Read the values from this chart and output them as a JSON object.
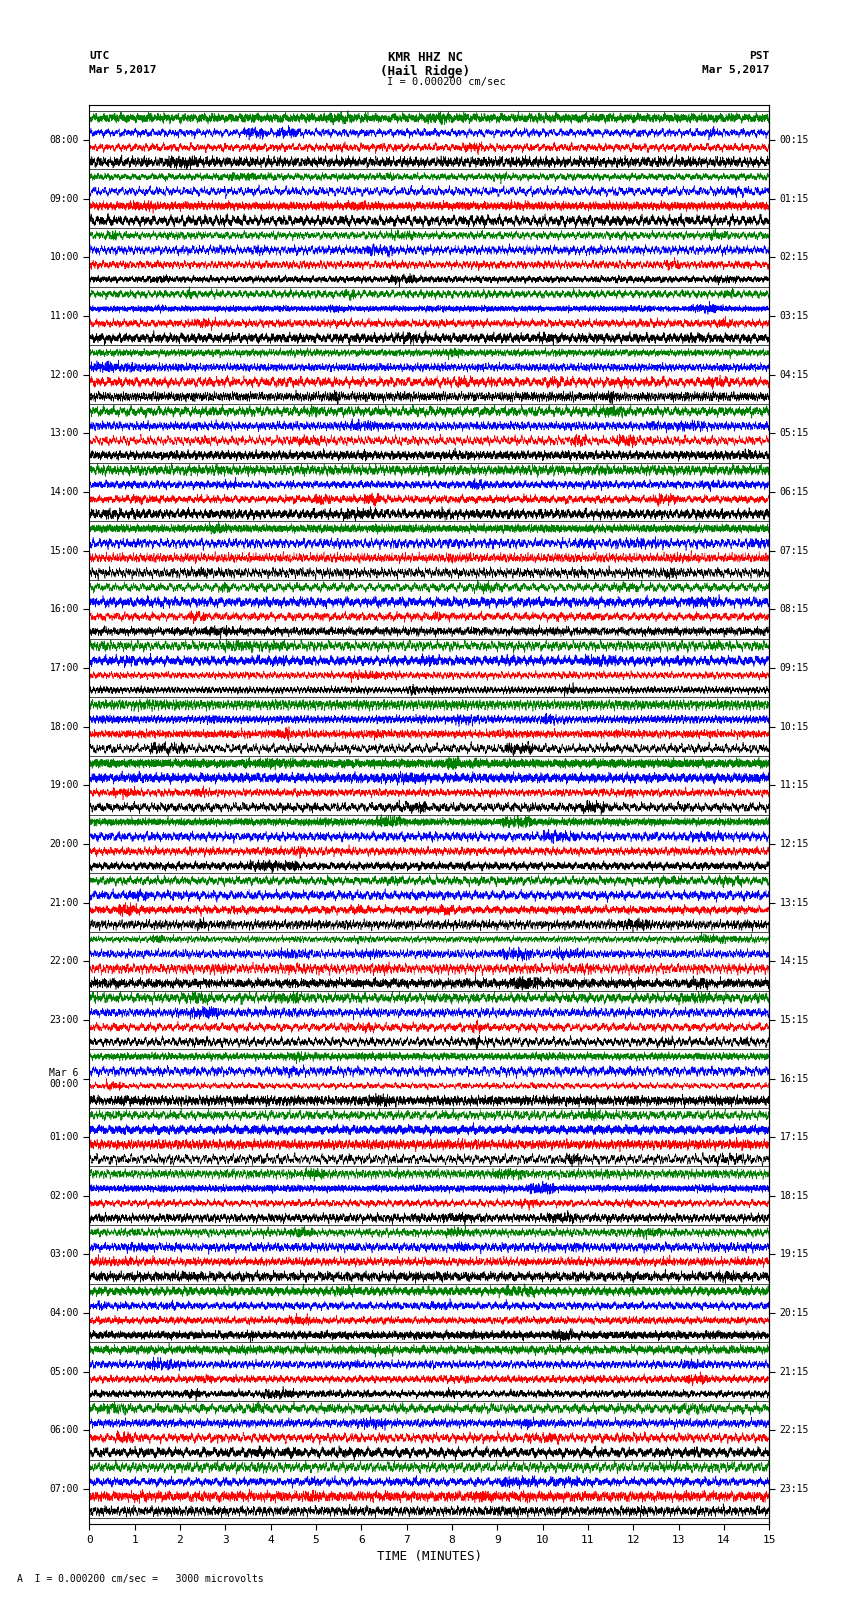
{
  "title_line1": "KMR HHZ NC",
  "title_line2": "(Hail Ridge)",
  "scale_label": "I = 0.000200 cm/sec",
  "left_label_top": "UTC",
  "left_label_date": "Mar 5,2017",
  "right_label_top": "PST",
  "right_label_date": "Mar 5,2017",
  "bottom_label": "TIME (MINUTES)",
  "bottom_note": "A  I = 0.000200 cm/sec =   3000 microvolts",
  "utc_times_left": [
    "08:00",
    "09:00",
    "10:00",
    "11:00",
    "12:00",
    "13:00",
    "14:00",
    "15:00",
    "16:00",
    "17:00",
    "18:00",
    "19:00",
    "20:00",
    "21:00",
    "22:00",
    "23:00",
    "Mar 6\n00:00",
    "01:00",
    "02:00",
    "03:00",
    "04:00",
    "05:00",
    "06:00",
    "07:00"
  ],
  "pst_times_right": [
    "00:15",
    "01:15",
    "02:15",
    "03:15",
    "04:15",
    "05:15",
    "06:15",
    "07:15",
    "08:15",
    "09:15",
    "10:15",
    "11:15",
    "12:15",
    "13:15",
    "14:15",
    "15:15",
    "16:15",
    "17:15",
    "18:15",
    "19:15",
    "20:15",
    "21:15",
    "22:15",
    "23:15"
  ],
  "num_rows": 24,
  "traces_per_row": 4,
  "minutes_per_row": 15,
  "colors_per_row": [
    "black",
    "red",
    "blue",
    "green"
  ],
  "bg_color": "white",
  "fig_width": 8.5,
  "fig_height": 16.13,
  "dpi": 100,
  "xticks": [
    0,
    1,
    2,
    3,
    4,
    5,
    6,
    7,
    8,
    9,
    10,
    11,
    12,
    13,
    14,
    15
  ],
  "amplitude_scale": 0.42,
  "samples_per_trace": 6000,
  "linewidth": 0.4
}
